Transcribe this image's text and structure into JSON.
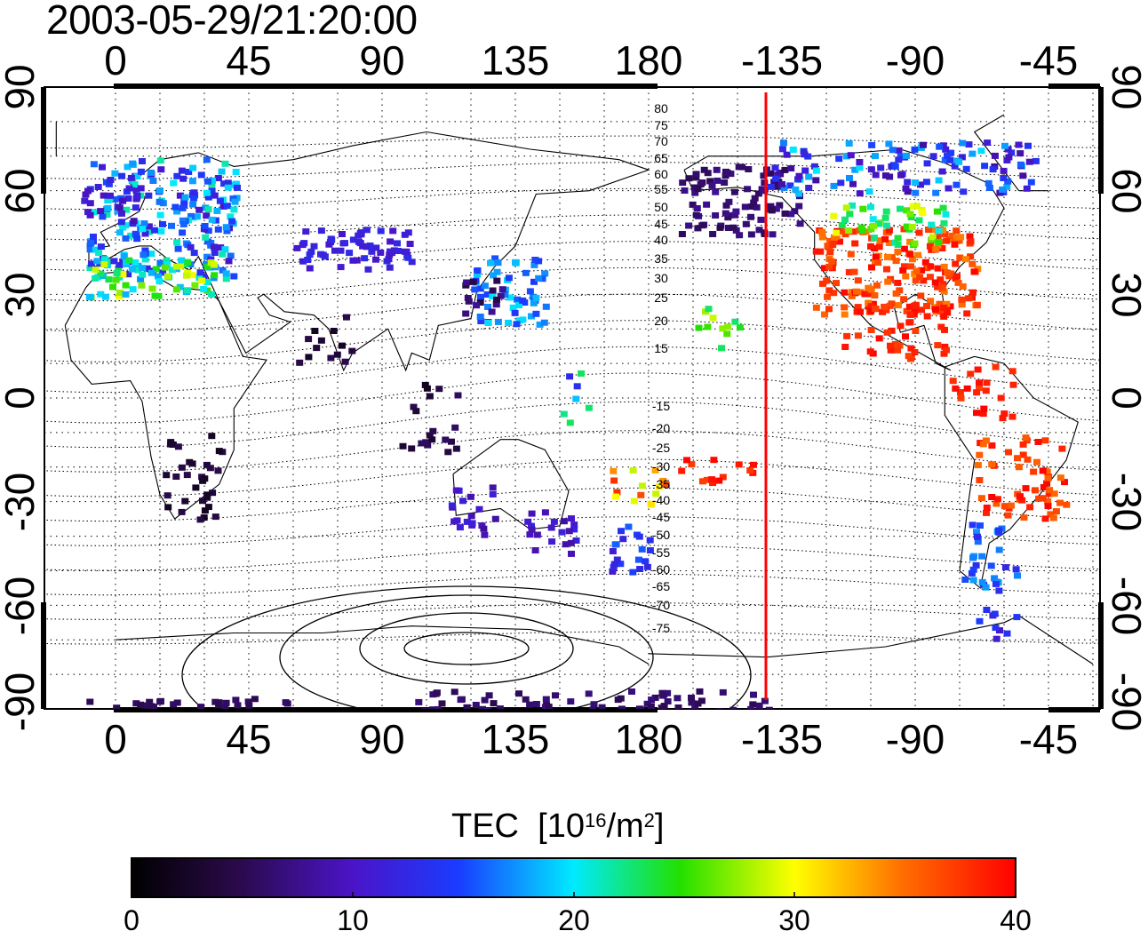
{
  "timestamp": "2003-05-29/21:20:00",
  "map": {
    "top_ticks": [
      "0",
      "45",
      "90",
      "135",
      "180",
      "-135",
      "-90",
      "-45"
    ],
    "bottom_ticks": [
      "0",
      "45",
      "90",
      "135",
      "180",
      "-135",
      "-90",
      "-45"
    ],
    "left_ticks": [
      "90",
      "60",
      "30",
      "0",
      "-30",
      "-60",
      "-90"
    ],
    "right_ticks": [
      "90",
      "60",
      "30",
      "0",
      "-30",
      "-60",
      "-90"
    ],
    "contour_labels": [
      "80",
      "75",
      "70",
      "65",
      "60",
      "55",
      "50",
      "45",
      "40",
      "35",
      "30",
      "25",
      "20",
      "15",
      "-15",
      "-20",
      "-25",
      "-30",
      "-35",
      "-40",
      "-45",
      "-50",
      "-55",
      "-60",
      "-65",
      "-70",
      "-75"
    ],
    "terminator_color": "#ff0000"
  },
  "colorbar": {
    "title": "TEC",
    "unit_base": "10",
    "unit_exp": "16",
    "unit_mid": "/m",
    "unit_exp2": "2",
    "ticks": [
      "0",
      "10",
      "20",
      "30",
      "40"
    ],
    "min": 0,
    "max": 40
  }
}
